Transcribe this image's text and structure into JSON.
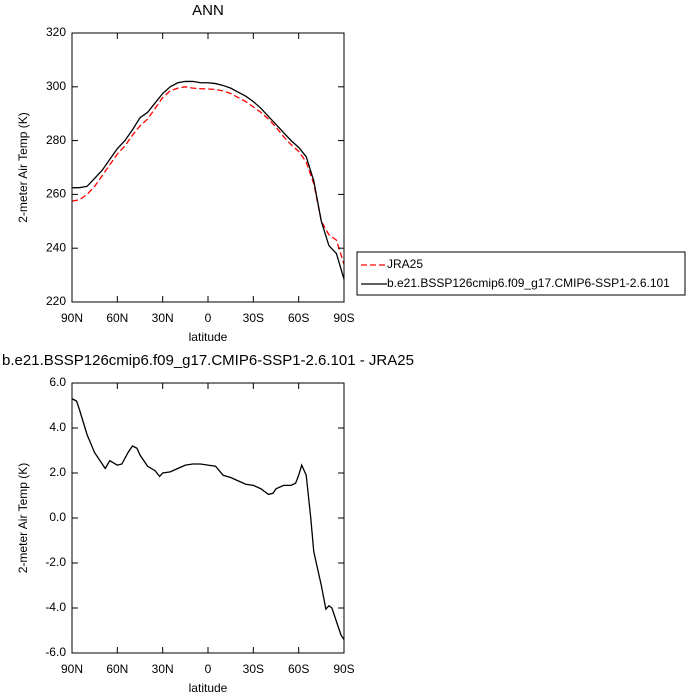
{
  "chart_data": [
    {
      "type": "line",
      "title": "ANN",
      "xlabel": "latitude",
      "ylabel": "2-meter Air Temp (K)",
      "x": [
        90,
        85,
        80,
        75,
        70,
        65,
        60,
        55,
        50,
        45,
        40,
        35,
        30,
        25,
        20,
        15,
        10,
        5,
        0,
        -5,
        -10,
        -15,
        -20,
        -25,
        -30,
        -35,
        -40,
        -45,
        -50,
        -55,
        -60,
        -65,
        -70,
        -75,
        -80,
        -85,
        -90
      ],
      "series": [
        {
          "name": "JRA25",
          "color": "#ff0000",
          "style": "dashed",
          "values": [
            257.5,
            258,
            260,
            263,
            267,
            271,
            275,
            278,
            282,
            285.5,
            288,
            292,
            296,
            298.5,
            299.5,
            300,
            299.5,
            299.3,
            299.2,
            299,
            298.5,
            297.5,
            296,
            294.5,
            292.5,
            290.5,
            288,
            285,
            281.5,
            278.5,
            276,
            272,
            264,
            250,
            245,
            243,
            234
          ]
        },
        {
          "name": "b.e21.BSSP126cmip6.f09_g17.CMIP6-SSP1-2.6.101",
          "color": "#000000",
          "style": "solid",
          "values": [
            262.5,
            262.5,
            263,
            266,
            269,
            273,
            277,
            280,
            284,
            288.5,
            290.5,
            294,
            297.5,
            300,
            301.5,
            302,
            302,
            301.5,
            301.5,
            301.2,
            300.5,
            299.5,
            298,
            296.5,
            294.5,
            292,
            289,
            286,
            283,
            280,
            277.5,
            274,
            265,
            250,
            241,
            238,
            228.5
          ]
        }
      ],
      "xlim": [
        90,
        -90
      ],
      "xticks": [
        {
          "value": 90,
          "label": "90N"
        },
        {
          "value": 60,
          "label": "60N"
        },
        {
          "value": 30,
          "label": "30N"
        },
        0,
        {
          "value": -30,
          "label": "30S"
        },
        {
          "value": -60,
          "label": "60S"
        },
        {
          "value": -90,
          "label": "90S"
        }
      ],
      "ylim": [
        220,
        320
      ],
      "yticks": [
        220,
        240,
        260,
        280,
        300,
        320
      ],
      "legend": "right"
    },
    {
      "type": "line",
      "title": "b.e21.BSSP126cmip6.f09_g17.CMIP6-SSP1-2.6.101 - JRA25",
      "xlabel": "latitude",
      "ylabel": "2-meter Air Temp (K)",
      "x": [
        90,
        87,
        85,
        80,
        75,
        70,
        68,
        65,
        60,
        57,
        53,
        50,
        47,
        45,
        40,
        35,
        32,
        30,
        25,
        20,
        15,
        10,
        5,
        0,
        -5,
        -10,
        -15,
        -20,
        -25,
        -30,
        -35,
        -40,
        -43,
        -45,
        -50,
        -55,
        -58,
        -60,
        -62,
        -65,
        -68,
        -70,
        -75,
        -78,
        -80,
        -82,
        -85,
        -88,
        -90
      ],
      "series": [
        {
          "color": "#000000",
          "style": "solid",
          "values": [
            5.3,
            5.2,
            4.8,
            3.7,
            2.9,
            2.4,
            2.2,
            2.55,
            2.35,
            2.4,
            2.9,
            3.2,
            3.1,
            2.8,
            2.3,
            2.1,
            1.85,
            2.0,
            2.05,
            2.2,
            2.35,
            2.4,
            2.4,
            2.35,
            2.3,
            1.9,
            1.8,
            1.65,
            1.5,
            1.45,
            1.3,
            1.05,
            1.1,
            1.3,
            1.45,
            1.45,
            1.55,
            1.9,
            2.35,
            1.9,
            0,
            -1.5,
            -3.0,
            -4.05,
            -3.9,
            -4.0,
            -4.6,
            -5.2,
            -5.4
          ]
        }
      ],
      "xlim": [
        90,
        -90
      ],
      "xticks": [
        {
          "value": 90,
          "label": "90N"
        },
        {
          "value": 60,
          "label": "60N"
        },
        {
          "value": 30,
          "label": "30N"
        },
        0,
        {
          "value": -30,
          "label": "30S"
        },
        {
          "value": -60,
          "label": "60S"
        },
        {
          "value": -90,
          "label": "90S"
        }
      ],
      "ylim": [
        -6,
        6
      ],
      "yticks": [
        {
          "value": -6,
          "label": "-6.0"
        },
        {
          "value": -4,
          "label": "-4.0"
        },
        {
          "value": -2,
          "label": "-2.0"
        },
        {
          "value": 0,
          "label": "0.0"
        },
        {
          "value": 2,
          "label": "2.0"
        },
        {
          "value": 4,
          "label": "4.0"
        },
        {
          "value": 6,
          "label": "6.0"
        }
      ]
    }
  ]
}
